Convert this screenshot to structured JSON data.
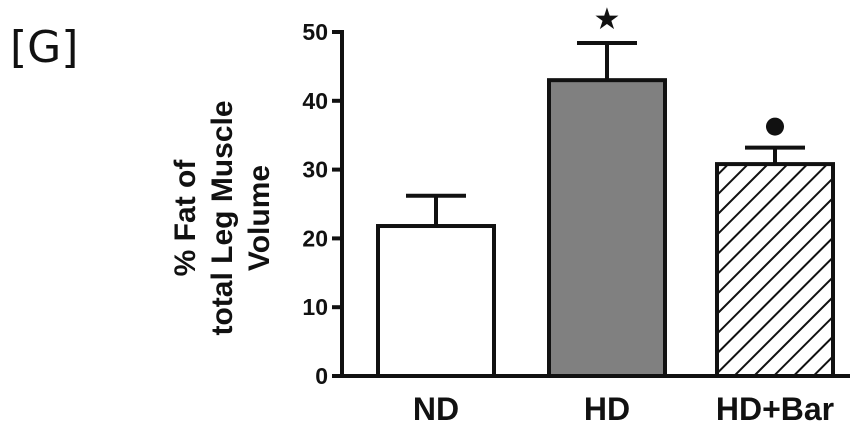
{
  "panel_label": "[G]",
  "chart_data": {
    "type": "bar",
    "title": "",
    "xlabel": "",
    "ylabel_lines": [
      "% Fat of",
      "total Leg Muscle",
      "Volume"
    ],
    "ylim": [
      0,
      50
    ],
    "yticks": [
      0,
      10,
      20,
      30,
      40,
      50
    ],
    "categories": [
      "ND",
      "HD",
      "HD+Bar"
    ],
    "values": [
      21.8,
      43.0,
      30.8
    ],
    "errors": [
      4.4,
      5.4,
      2.4
    ],
    "bar_styles": [
      "white",
      "gray",
      "hatched"
    ],
    "significance": [
      "",
      "★",
      "●"
    ],
    "bar_colors": {
      "white": "#ffffff",
      "gray": "#808080",
      "hatch": "#111111"
    },
    "grid": false,
    "legend": "none"
  }
}
